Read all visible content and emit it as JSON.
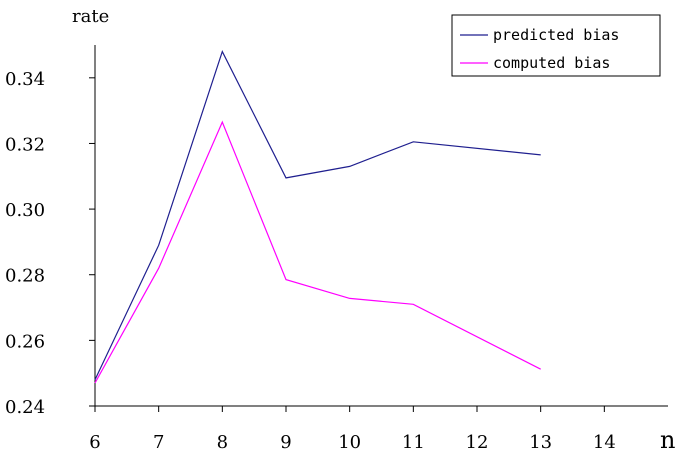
{
  "chart_data": {
    "type": "line",
    "title": "",
    "xlabel": "n",
    "ylabel": "rate",
    "x": [
      6,
      7,
      8,
      9,
      10,
      11,
      12,
      13
    ],
    "x_ticks": [
      "6",
      "7",
      "8",
      "9",
      "10",
      "11",
      "12",
      "13",
      "14"
    ],
    "xlim": [
      6,
      15
    ],
    "ylim": [
      0.24,
      0.35
    ],
    "y_ticks": [
      "0.24",
      "0.26",
      "0.28",
      "0.30",
      "0.32",
      "0.34"
    ],
    "grid": false,
    "legend_position": "top-right",
    "series": [
      {
        "name": "predicted bias",
        "color": "#1f1f8f",
        "x": [
          6,
          7,
          8,
          9,
          10,
          11,
          13
        ],
        "values": [
          0.248,
          0.289,
          0.348,
          0.3095,
          0.313,
          0.3205,
          0.3165
        ]
      },
      {
        "name": "computed bias",
        "color": "#ff00ff",
        "x": [
          6,
          7,
          8,
          9,
          10,
          11,
          13
        ],
        "values": [
          0.247,
          0.282,
          0.3265,
          0.2785,
          0.2728,
          0.271,
          0.2512
        ]
      }
    ]
  }
}
